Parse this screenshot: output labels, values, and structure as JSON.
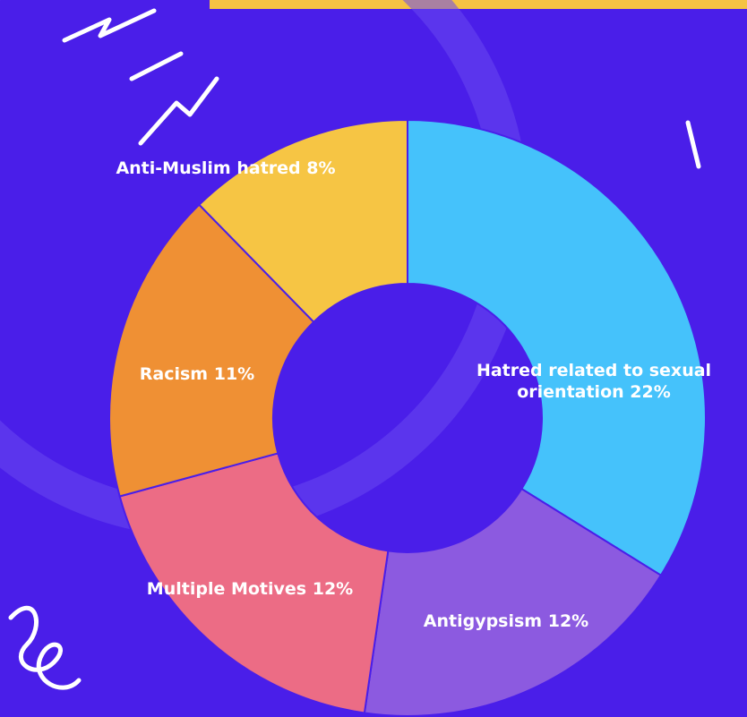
{
  "chart_data": {
    "type": "pie",
    "categories": [
      "Hatred related to sexual orientation",
      "Antigypsism",
      "Multiple Motives",
      "Racism",
      "Anti-Muslim hatred"
    ],
    "values": [
      22,
      12,
      12,
      11,
      8
    ],
    "value_labels": [
      "22%",
      "12%",
      "12%",
      "11%",
      "8%"
    ],
    "colors": [
      "#45c2fb",
      "#8c5ae0",
      "#ec6c85",
      "#ef9034",
      "#f6c544"
    ]
  }
}
